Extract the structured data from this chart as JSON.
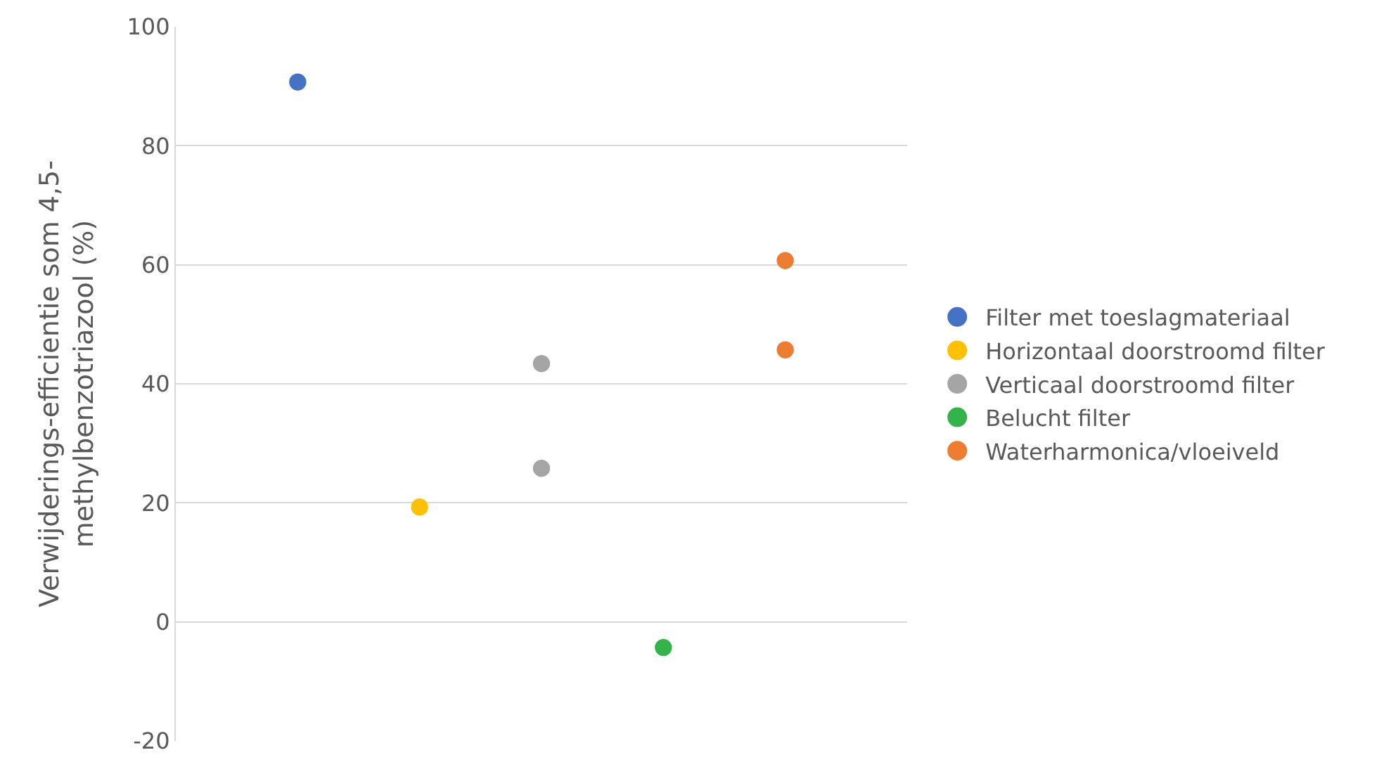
{
  "chart_data": {
    "type": "scatter",
    "ylabel": "Verwijderings-efficientie som 4,5-methylbenzotriazool (%)",
    "categories": [
      null,
      null,
      null,
      null,
      null
    ],
    "series": [
      {
        "name": "Filter met toeslagmateriaal",
        "color": "#4472c4",
        "values": [
          90.7,
          null,
          null,
          null,
          null
        ]
      },
      {
        "name": "Horizontaal doorstroomd filter",
        "color": "#ffc000",
        "values": [
          null,
          19.3,
          null,
          null,
          null
        ]
      },
      {
        "name": "Verticaal doorstroomd filter",
        "color": "#a5a5a5",
        "values": [
          null,
          null,
          43.4,
          null,
          null
        ]
      },
      {
        "color": "#a5a5a5",
        "values": [
          null,
          null,
          25.8,
          null,
          null
        ]
      },
      {
        "name": "Belucht filter",
        "color": "#33b34a",
        "values": [
          null,
          null,
          null,
          -4.3,
          null
        ]
      },
      {
        "name": "Waterharmonica/vloeiveld",
        "color": "#ed7d31",
        "values": [
          null,
          null,
          null,
          null,
          60.7
        ]
      },
      {
        "color": "#ed7d31",
        "values": [
          null,
          null,
          null,
          null,
          45.7
        ]
      }
    ],
    "ylim": [
      -20,
      100
    ],
    "yticks": [
      -20,
      0,
      20,
      40,
      60,
      80,
      100
    ],
    "grid": "y",
    "legend": "right",
    "marker": "circle",
    "tick_labels": "y"
  }
}
